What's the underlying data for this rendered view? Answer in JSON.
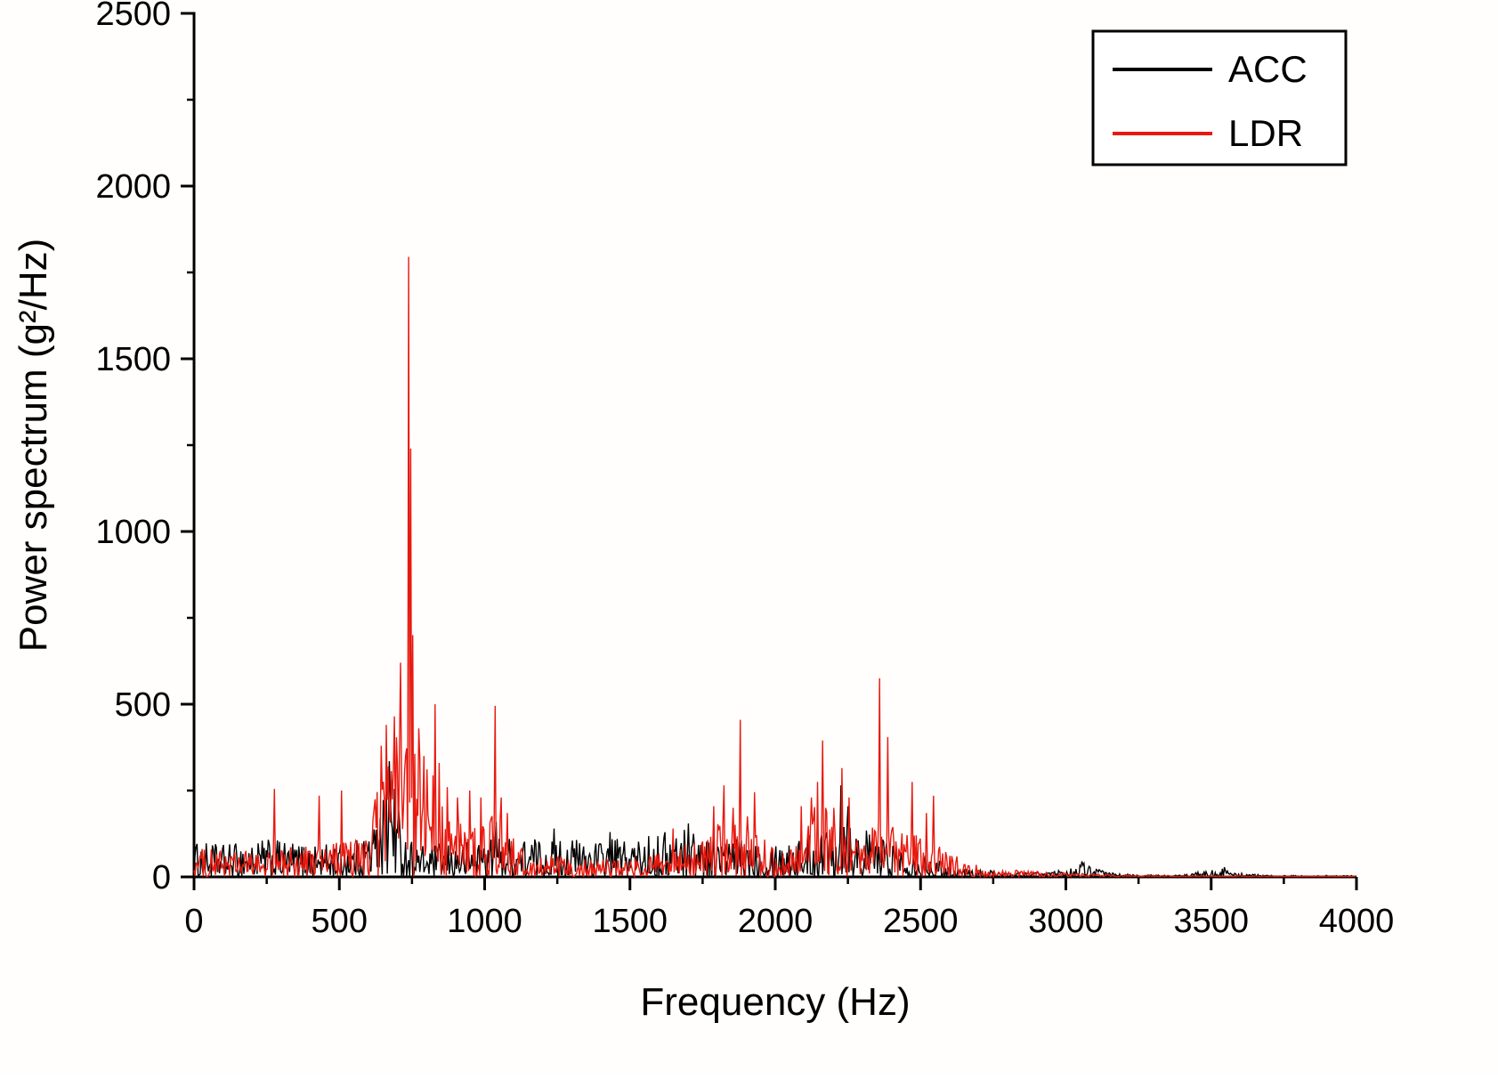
{
  "figure": {
    "background": "#fffefd"
  },
  "chart_data": {
    "type": "line",
    "title": "",
    "xlabel": "Frequency (Hz)",
    "ylabel": "Power spectrum (g²/Hz)",
    "xlim": [
      0,
      4000
    ],
    "ylim": [
      0,
      2500
    ],
    "xticks": [
      0,
      500,
      1000,
      1500,
      2000,
      2500,
      3000,
      3500,
      4000
    ],
    "yticks": [
      0,
      500,
      1000,
      1500,
      2000,
      2500
    ],
    "grid": false,
    "legend_position": "top-right",
    "legend": [
      {
        "name": "ACC",
        "color": "#000000"
      },
      {
        "name": "LDR",
        "color": "#e8190f"
      }
    ],
    "series": [
      {
        "name": "ACC",
        "color": "#000000",
        "noise_envelope": [
          [
            0,
            100
          ],
          [
            100,
            95
          ],
          [
            250,
            110
          ],
          [
            400,
            95
          ],
          [
            550,
            100
          ],
          [
            620,
            160
          ],
          [
            650,
            250
          ],
          [
            672,
            340
          ],
          [
            690,
            260
          ],
          [
            720,
            130
          ],
          [
            780,
            90
          ],
          [
            900,
            95
          ],
          [
            1000,
            120
          ],
          [
            1100,
            115
          ],
          [
            1250,
            115
          ],
          [
            1400,
            110
          ],
          [
            1550,
            115
          ],
          [
            1650,
            140
          ],
          [
            1720,
            150
          ],
          [
            1800,
            115
          ],
          [
            1950,
            110
          ],
          [
            2100,
            115
          ],
          [
            2180,
            160
          ],
          [
            2230,
            270
          ],
          [
            2280,
            150
          ],
          [
            2380,
            115
          ],
          [
            2480,
            80
          ],
          [
            2550,
            50
          ],
          [
            2650,
            25
          ],
          [
            2800,
            14
          ],
          [
            2950,
            14
          ],
          [
            3030,
            30
          ],
          [
            3070,
            45
          ],
          [
            3120,
            20
          ],
          [
            3200,
            8
          ],
          [
            3400,
            5
          ],
          [
            3530,
            26
          ],
          [
            3580,
            12
          ],
          [
            3700,
            5
          ],
          [
            4000,
            4
          ]
        ],
        "peaks": [
          [
            640,
            170
          ],
          [
            655,
            195
          ],
          [
            672,
            335
          ],
          [
            690,
            255
          ],
          [
            705,
            200
          ],
          [
            1040,
            160
          ],
          [
            1240,
            140
          ],
          [
            1430,
            130
          ],
          [
            1700,
            155
          ],
          [
            2225,
            265
          ],
          [
            2252,
            205
          ],
          [
            3055,
            45
          ],
          [
            3545,
            28
          ]
        ]
      },
      {
        "name": "LDR",
        "color": "#e8190f",
        "noise_envelope": [
          [
            0,
            85
          ],
          [
            200,
            75
          ],
          [
            300,
            85
          ],
          [
            400,
            95
          ],
          [
            500,
            105
          ],
          [
            600,
            130
          ],
          [
            640,
            300
          ],
          [
            680,
            430
          ],
          [
            730,
            430
          ],
          [
            760,
            390
          ],
          [
            800,
            320
          ],
          [
            850,
            300
          ],
          [
            900,
            190
          ],
          [
            950,
            160
          ],
          [
            1000,
            170
          ],
          [
            1045,
            210
          ],
          [
            1080,
            130
          ],
          [
            1150,
            65
          ],
          [
            1300,
            55
          ],
          [
            1500,
            55
          ],
          [
            1650,
            75
          ],
          [
            1780,
            140
          ],
          [
            1850,
            180
          ],
          [
            1910,
            150
          ],
          [
            2000,
            85
          ],
          [
            2060,
            110
          ],
          [
            2110,
            180
          ],
          [
            2160,
            250
          ],
          [
            2210,
            160
          ],
          [
            2260,
            130
          ],
          [
            2310,
            110
          ],
          [
            2360,
            180
          ],
          [
            2410,
            150
          ],
          [
            2470,
            130
          ],
          [
            2530,
            120
          ],
          [
            2580,
            90
          ],
          [
            2650,
            45
          ],
          [
            2750,
            22
          ],
          [
            2870,
            18
          ],
          [
            2950,
            15
          ],
          [
            3050,
            10
          ],
          [
            3150,
            7
          ],
          [
            3300,
            4
          ],
          [
            4000,
            3
          ]
        ],
        "peaks": [
          [
            278,
            255
          ],
          [
            430,
            235
          ],
          [
            508,
            250
          ],
          [
            645,
            380
          ],
          [
            660,
            440
          ],
          [
            690,
            465
          ],
          [
            712,
            620
          ],
          [
            738,
            1795
          ],
          [
            746,
            1240
          ],
          [
            753,
            700
          ],
          [
            772,
            430
          ],
          [
            790,
            350
          ],
          [
            830,
            500
          ],
          [
            845,
            330
          ],
          [
            870,
            260
          ],
          [
            905,
            230
          ],
          [
            950,
            250
          ],
          [
            988,
            230
          ],
          [
            1035,
            495
          ],
          [
            1058,
            230
          ],
          [
            1078,
            185
          ],
          [
            1650,
            140
          ],
          [
            1790,
            205
          ],
          [
            1822,
            265
          ],
          [
            1855,
            200
          ],
          [
            1880,
            455
          ],
          [
            1905,
            175
          ],
          [
            1930,
            245
          ],
          [
            2090,
            205
          ],
          [
            2125,
            230
          ],
          [
            2147,
            275
          ],
          [
            2162,
            395
          ],
          [
            2200,
            200
          ],
          [
            2230,
            315
          ],
          [
            2255,
            230
          ],
          [
            2360,
            575
          ],
          [
            2387,
            405
          ],
          [
            2470,
            275
          ],
          [
            2520,
            185
          ],
          [
            2545,
            235
          ]
        ]
      }
    ]
  }
}
